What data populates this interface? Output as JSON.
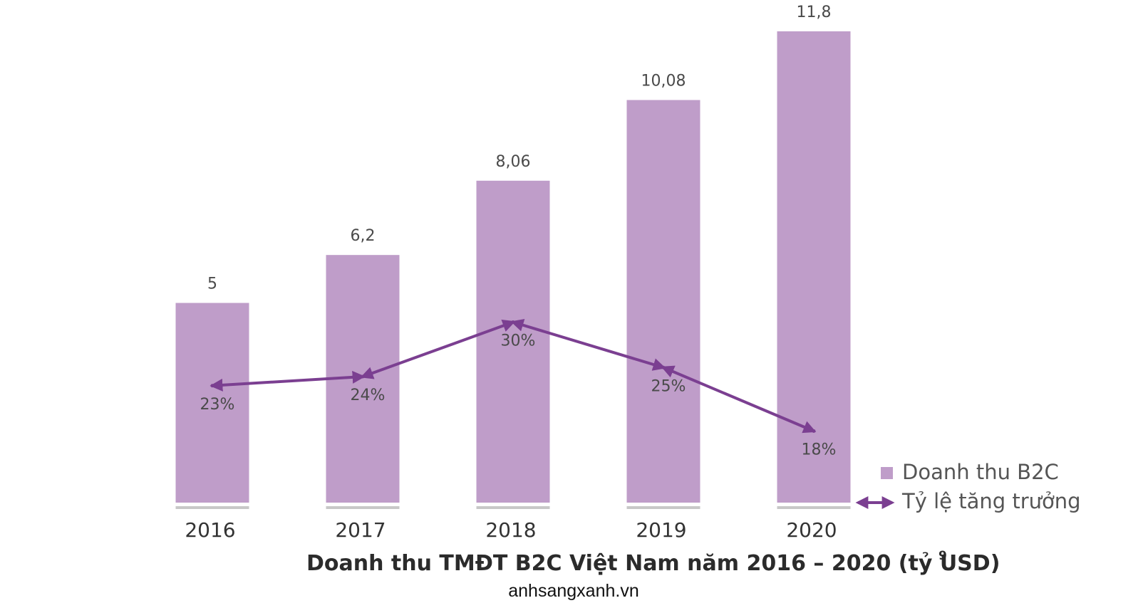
{
  "chart_data": {
    "type": "bar",
    "title": "Doanh thu TMĐT B2C Việt Nam năm 2016 – 2020 (tỷ USD)",
    "title_footnote": "9",
    "categories": [
      "2016",
      "2017",
      "2018",
      "2019",
      "2020"
    ],
    "series": [
      {
        "name": "Doanh thu B2C",
        "kind": "bar",
        "values": [
          5,
          6.2,
          8.06,
          10.08,
          11.8
        ],
        "labels": [
          "5",
          "6,2",
          "8,06",
          "10,08",
          "11,8"
        ],
        "color": "#bf9dc9"
      },
      {
        "name": "Tỷ lệ tăng trưởng",
        "kind": "line",
        "values": [
          23,
          24,
          30,
          25,
          18
        ],
        "labels": [
          "23%",
          "24%",
          "30%",
          "25%",
          "18%"
        ],
        "color": "#7b3f91"
      }
    ],
    "ylim": [
      0,
      12
    ],
    "grid": false,
    "legend_position": "bottom-right"
  },
  "source": "anhsangxanh.vn",
  "colors": {
    "bar": "#bf9dc9",
    "line": "#7b3f91",
    "baseline": "#c8c8c8"
  }
}
